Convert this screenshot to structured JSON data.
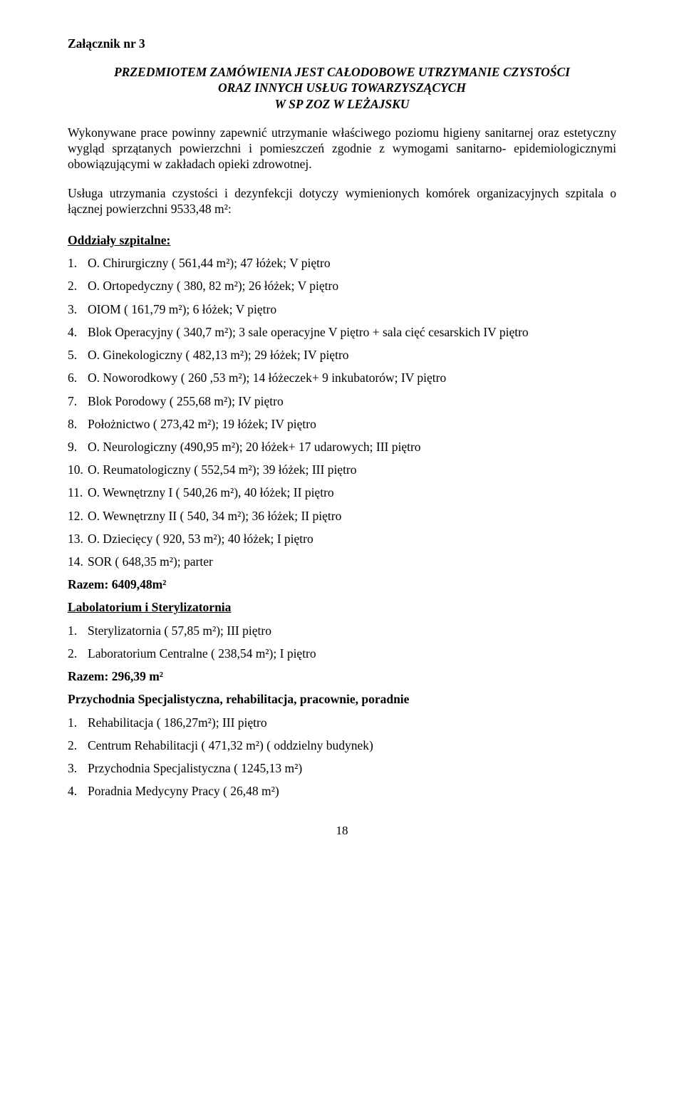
{
  "attachment_label": "Załącznik nr 3",
  "title": {
    "line1": "PRZEDMIOTEM ZAMÓWIENIA JEST CAŁODOBOWE UTRZYMANIE CZYSTOŚCI",
    "line2": "ORAZ INNYCH USŁUG TOWARZYSZĄCYCH",
    "line3": "W SP ZOZ W LEŻAJSKU"
  },
  "intro_paragraph": "Wykonywane prace powinny zapewnić utrzymanie właściwego poziomu higieny sanitarnej oraz estetyczny wygląd sprzątanych powierzchni i pomieszczeń zgodnie z wymogami sanitarno- epidemiologicznymi obowiązującymi w zakładach opieki zdrowotnej.",
  "service_paragraph": "Usługa utrzymania czystości i dezynfekcji dotyczy wymienionych komórek organizacyjnych szpitala o łącznej powierzchni 9533,48 m²:",
  "sections": {
    "wards": {
      "heading": "Oddziały szpitalne:",
      "items": [
        "O. Chirurgiczny ( 561,44 m²); 47 łóżek; V piętro",
        "O. Ortopedyczny ( 380, 82 m²); 26 łóżek; V piętro",
        "OIOM   ( 161,79 m²); 6 łóżek; V piętro",
        "Blok Operacyjny ( 340,7 m²);  3 sale operacyjne V piętro + sala cięć cesarskich IV piętro",
        "O. Ginekologiczny ( 482,13 m²); 29 łóżek; IV piętro",
        "O. Noworodkowy ( 260 ,53 m²); 14 łóżeczek+ 9 inkubatorów; IV piętro",
        "Blok Porodowy ( 255,68 m²); IV piętro",
        "Położnictwo ( 273,42 m²); 19 łóżek; IV piętro",
        "O. Neurologiczny (490,95 m²); 20 łóżek+ 17 udarowych; III piętro",
        "O. Reumatologiczny ( 552,54 m²); 39 łóżek; III piętro",
        "O. Wewnętrzny I ( 540,26 m²), 40 łóżek; II piętro",
        "O. Wewnętrzny II ( 540, 34 m²); 36 łóżek; II piętro",
        "O. Dziecięcy ( 920, 53 m²); 40 łóżek; I piętro",
        "SOR ( 648,35 m²); parter"
      ],
      "total": "Razem: 6409,48m²"
    },
    "lab": {
      "heading": "Labolatorium i Sterylizatornia",
      "items": [
        "Sterylizatornia ( 57,85 m²); III piętro",
        "Laboratorium Centralne ( 238,54 m²); I piętro"
      ],
      "total": "Razem: 296,39 m²"
    },
    "clinic": {
      "heading": "Przychodnia Specjalistyczna, rehabilitacja, pracownie, poradnie",
      "items": [
        "Rehabilitacja ( 186,27m²); III piętro",
        "Centrum Rehabilitacji ( 471,32 m²) ( oddzielny budynek)",
        "Przychodnia Specjalistyczna ( 1245,13 m²)",
        "Poradnia Medycyny Pracy ( 26,48 m²)"
      ]
    }
  },
  "page_number": "18"
}
